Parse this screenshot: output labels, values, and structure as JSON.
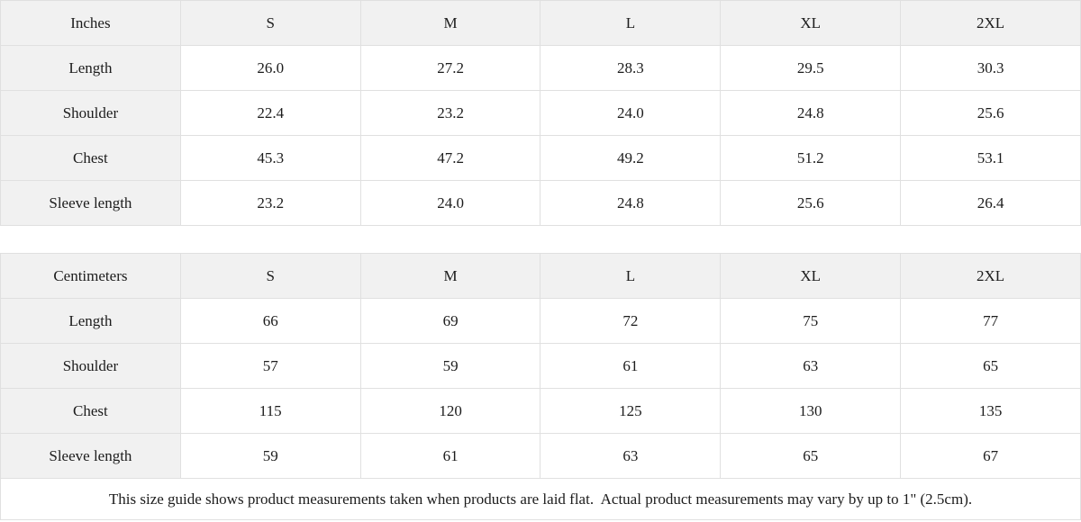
{
  "colors": {
    "header_bg": "#f1f1f1",
    "label_col_bg": "#f1f1f1",
    "cell_bg": "#ffffff",
    "border": "#e0e0e0",
    "text": "#1c1c1c"
  },
  "chart_data": [
    {
      "type": "table",
      "title": "Inches",
      "columns": [
        "Inches",
        "S",
        "M",
        "L",
        "XL",
        "2XL"
      ],
      "rows": [
        {
          "label": "Length",
          "values": [
            "26.0",
            "27.2",
            "28.3",
            "29.5",
            "30.3"
          ]
        },
        {
          "label": "Shoulder",
          "values": [
            "22.4",
            "23.2",
            "24.0",
            "24.8",
            "25.6"
          ]
        },
        {
          "label": "Chest",
          "values": [
            "45.3",
            "47.2",
            "49.2",
            "51.2",
            "53.1"
          ]
        },
        {
          "label": "Sleeve length",
          "values": [
            "23.2",
            "24.0",
            "24.8",
            "25.6",
            "26.4"
          ]
        }
      ]
    },
    {
      "type": "table",
      "title": "Centimeters",
      "columns": [
        "Centimeters",
        "S",
        "M",
        "L",
        "XL",
        "2XL"
      ],
      "rows": [
        {
          "label": "Length",
          "values": [
            "66",
            "69",
            "72",
            "75",
            "77"
          ]
        },
        {
          "label": "Shoulder",
          "values": [
            "57",
            "59",
            "61",
            "63",
            "65"
          ]
        },
        {
          "label": "Chest",
          "values": [
            "115",
            "120",
            "125",
            "130",
            "135"
          ]
        },
        {
          "label": "Sleeve length",
          "values": [
            "59",
            "61",
            "63",
            "65",
            "67"
          ]
        }
      ]
    }
  ],
  "footer": {
    "note": "This size guide shows product measurements taken when products are laid flat.  Actual product measurements may vary by up to 1\" (2.5cm)."
  }
}
